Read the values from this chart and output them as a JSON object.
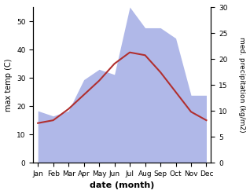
{
  "months": [
    "Jan",
    "Feb",
    "Mar",
    "Apr",
    "May",
    "Jun",
    "Jul",
    "Aug",
    "Sep",
    "Oct",
    "Nov",
    "Dec"
  ],
  "temp": [
    14,
    15,
    19,
    24,
    29,
    35,
    39,
    38,
    32,
    25,
    18,
    15
  ],
  "precip": [
    10,
    9,
    10,
    16,
    18,
    17,
    30,
    26,
    26,
    24,
    13,
    13
  ],
  "temp_ylim": [
    0,
    55
  ],
  "precip_ylim": [
    0,
    30
  ],
  "temp_color": "#b03030",
  "precip_color_fill": "#b0b8e8",
  "xlabel": "date (month)",
  "ylabel_left": "max temp (C)",
  "ylabel_right": "med. precipitation (kg/m2)",
  "bg_color": "#ffffff"
}
